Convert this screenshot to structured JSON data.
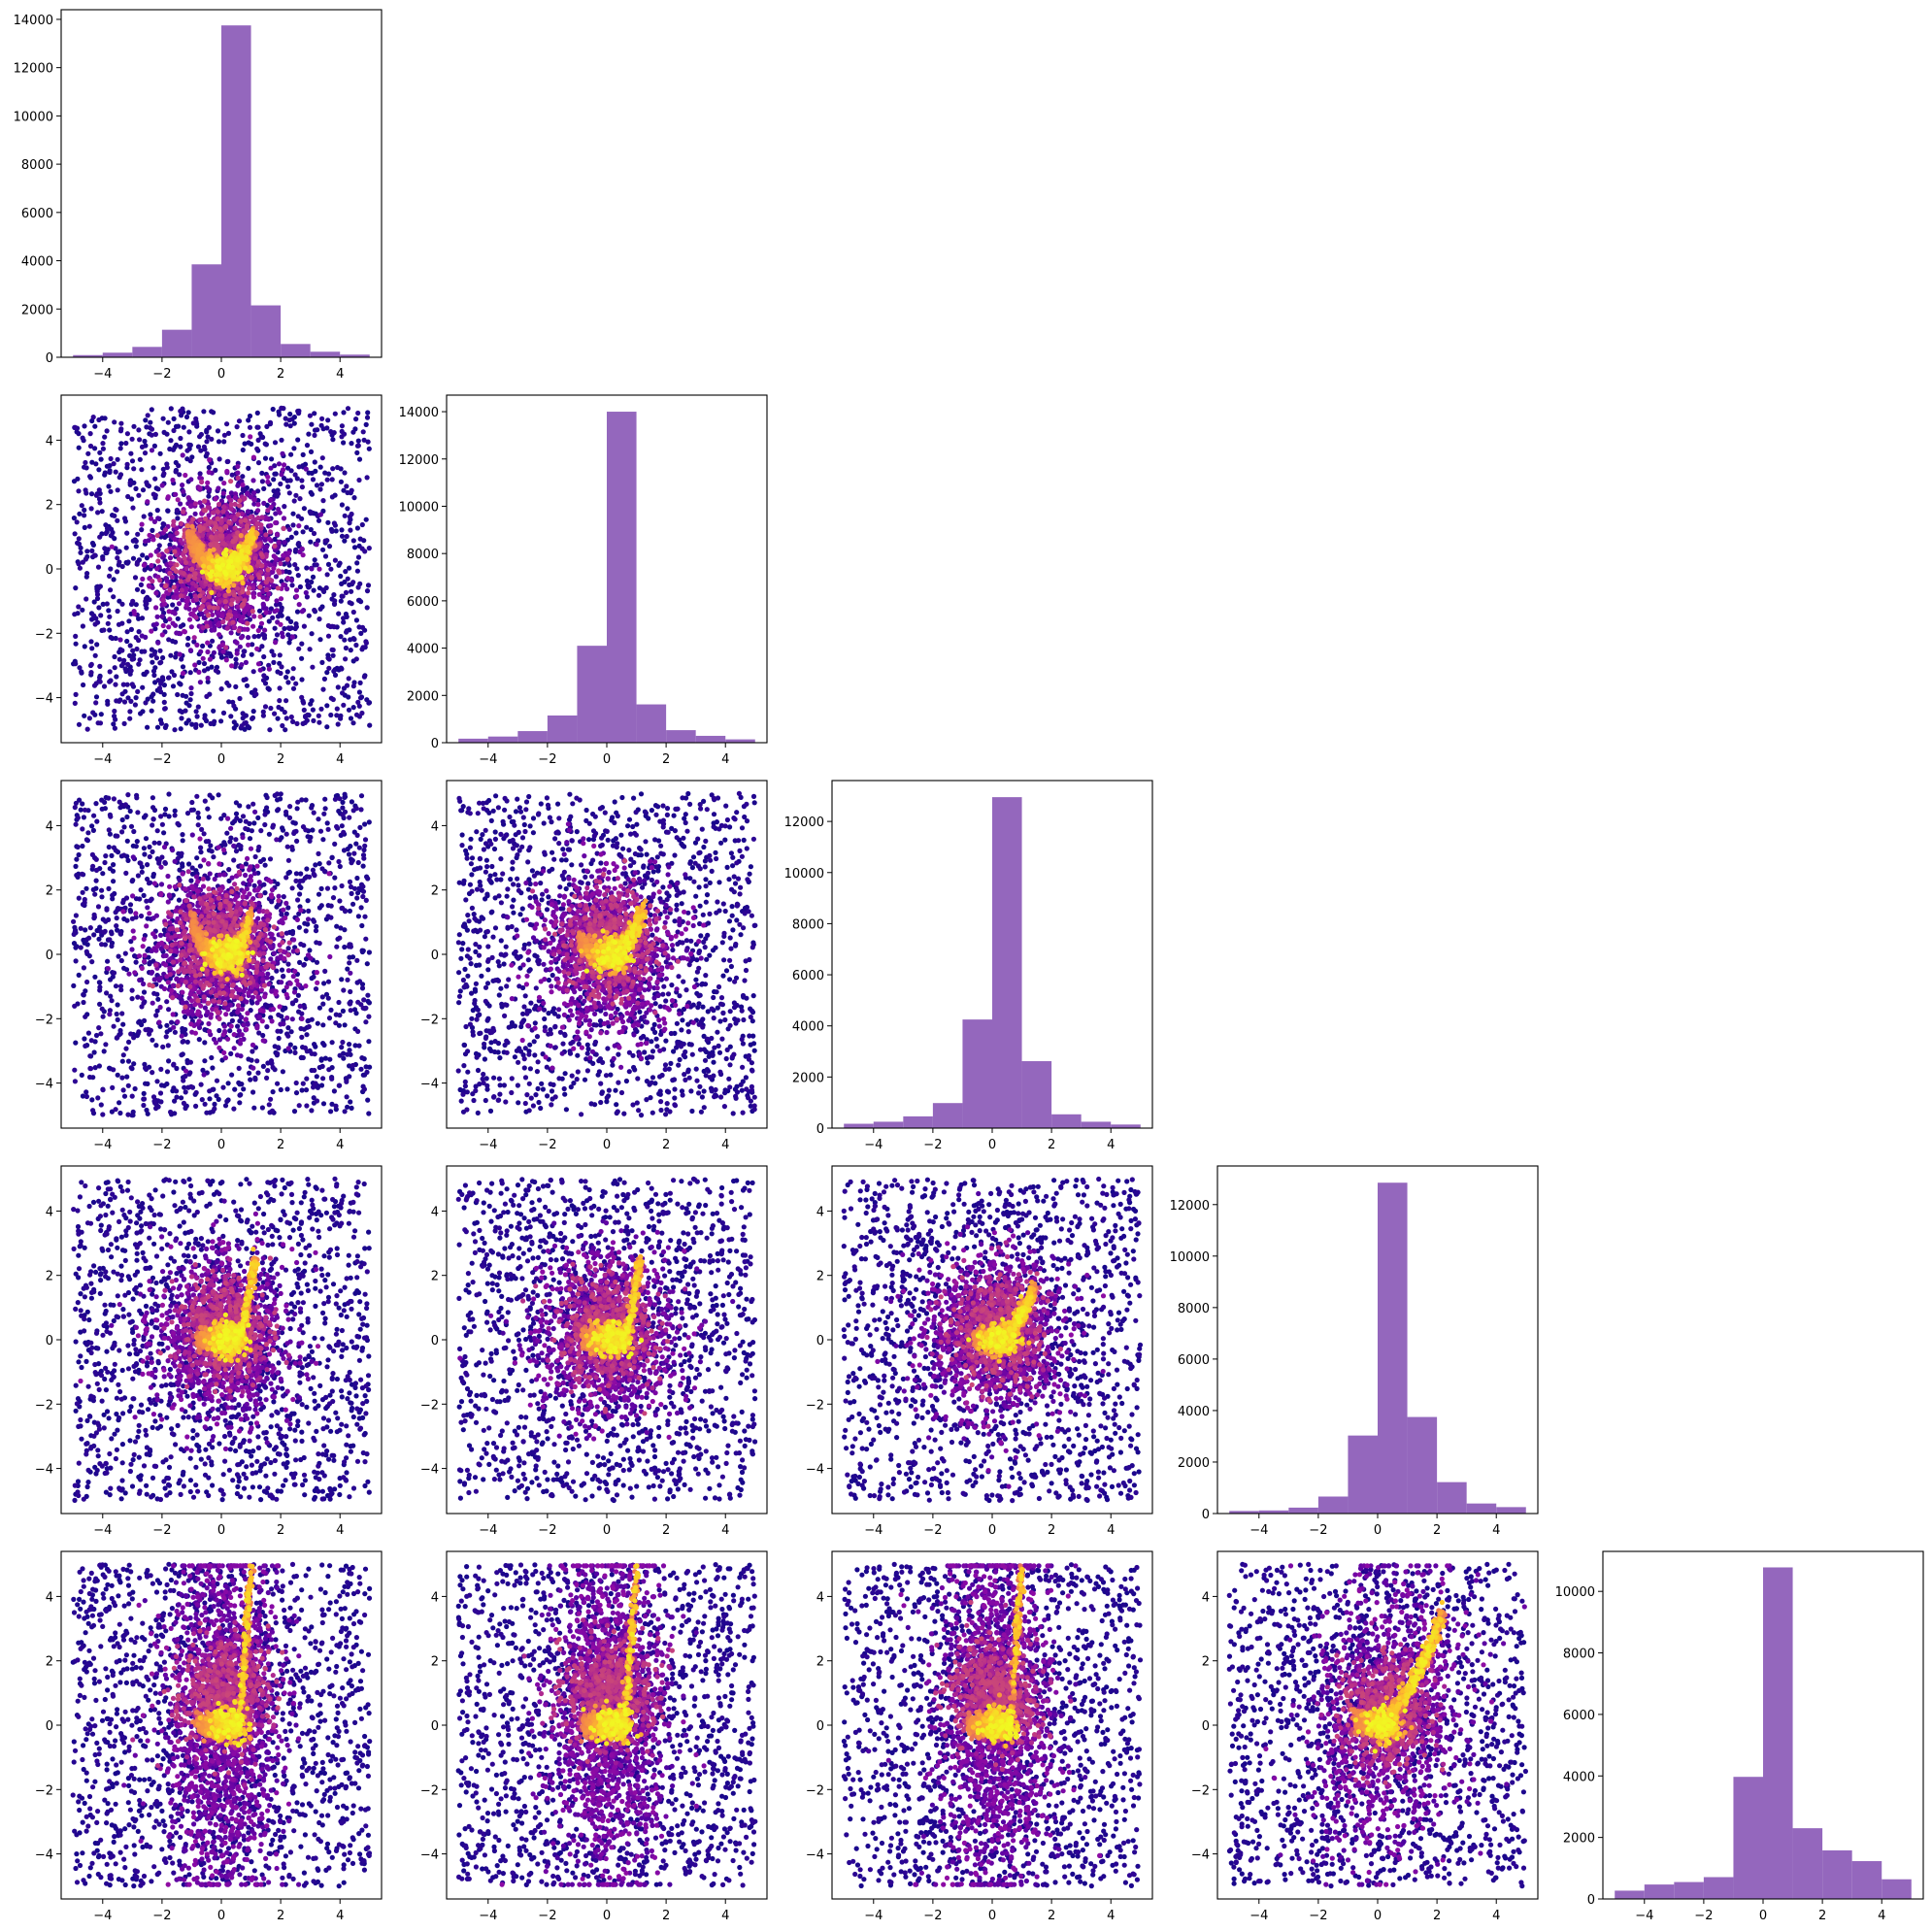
{
  "chart_data": {
    "type": "corner-plot",
    "n_variables": 5,
    "colors": {
      "histogram": "#9467bd",
      "scatter_colormap": "plasma",
      "axes": "#000000",
      "background": "#ffffff"
    },
    "axis_range": [
      -5,
      5
    ],
    "x_tick_labels": [
      "−4",
      "−2",
      "0",
      "2",
      "4"
    ],
    "y_tick_labels": [
      "−4",
      "−2",
      "0",
      "2",
      "4"
    ],
    "histograms": [
      {
        "variable": 1,
        "type": "bar",
        "bin_edges": [
          -5,
          -4,
          -3,
          -2,
          -1,
          0,
          1,
          2,
          3,
          4,
          5
        ],
        "counts": [
          90,
          190,
          430,
          1140,
          3850,
          13750,
          2150,
          550,
          230,
          110
        ],
        "ylim": [
          0,
          14400
        ],
        "y_tick_labels": [
          "0",
          "2000",
          "4000",
          "6000",
          "8000",
          "10000",
          "12000",
          "14000"
        ]
      },
      {
        "variable": 2,
        "type": "bar",
        "bin_edges": [
          -5,
          -4,
          -3,
          -2,
          -1,
          0,
          1,
          2,
          3,
          4,
          5
        ],
        "counts": [
          170,
          260,
          490,
          1150,
          4100,
          14000,
          1620,
          530,
          290,
          140
        ],
        "ylim": [
          0,
          14700
        ],
        "y_tick_labels": [
          "0",
          "2000",
          "4000",
          "6000",
          "8000",
          "10000",
          "12000",
          "14000"
        ]
      },
      {
        "variable": 3,
        "type": "bar",
        "bin_edges": [
          -5,
          -4,
          -3,
          -2,
          -1,
          0,
          1,
          2,
          3,
          4,
          5
        ],
        "counts": [
          170,
          250,
          460,
          980,
          4250,
          12950,
          2620,
          540,
          250,
          140
        ],
        "ylim": [
          0,
          13600
        ],
        "y_tick_labels": [
          "0",
          "2000",
          "4000",
          "6000",
          "8000",
          "10000",
          "12000"
        ]
      },
      {
        "variable": 4,
        "type": "bar",
        "bin_edges": [
          -5,
          -4,
          -3,
          -2,
          -1,
          0,
          1,
          2,
          3,
          4,
          5
        ],
        "counts": [
          100,
          120,
          230,
          660,
          3030,
          12850,
          3750,
          1220,
          390,
          250
        ],
        "ylim": [
          0,
          13500
        ],
        "y_tick_labels": [
          "0",
          "2000",
          "4000",
          "6000",
          "8000",
          "10000",
          "12000"
        ]
      },
      {
        "variable": 5,
        "type": "bar",
        "bin_edges": [
          -5,
          -4,
          -3,
          -2,
          -1,
          0,
          1,
          2,
          3,
          4,
          5
        ],
        "counts": [
          270,
          470,
          550,
          710,
          3970,
          10780,
          2300,
          1580,
          1230,
          640
        ],
        "ylim": [
          0,
          11300
        ],
        "y_tick_labels": [
          "0",
          "2000",
          "4000",
          "6000",
          "8000",
          "10000"
        ]
      }
    ],
    "scatter_panels": [
      {
        "row": 2,
        "col": 1,
        "type": "scatter",
        "shape": "v",
        "xlim": [
          -5,
          5
        ],
        "ylim": [
          -5,
          5
        ]
      },
      {
        "row": 3,
        "col": 1,
        "type": "scatter",
        "shape": "u",
        "xlim": [
          -5,
          5
        ],
        "ylim": [
          -5,
          5
        ]
      },
      {
        "row": 3,
        "col": 2,
        "type": "scatter",
        "shape": "check",
        "xlim": [
          -5,
          5
        ],
        "ylim": [
          -5,
          5
        ]
      },
      {
        "row": 4,
        "col": 1,
        "type": "scatter",
        "shape": "j",
        "xlim": [
          -5,
          5
        ],
        "ylim": [
          -5,
          5
        ]
      },
      {
        "row": 4,
        "col": 2,
        "type": "scatter",
        "shape": "j",
        "xlim": [
          -5,
          5
        ],
        "ylim": [
          -5,
          5
        ]
      },
      {
        "row": 4,
        "col": 3,
        "type": "scatter",
        "shape": "curve",
        "xlim": [
          -5,
          5
        ],
        "ylim": [
          -5,
          5
        ]
      },
      {
        "row": 5,
        "col": 1,
        "type": "scatter",
        "shape": "tall-j",
        "xlim": [
          -5,
          5
        ],
        "ylim": [
          -5,
          5
        ]
      },
      {
        "row": 5,
        "col": 2,
        "type": "scatter",
        "shape": "tall-j",
        "xlim": [
          -5,
          5
        ],
        "ylim": [
          -5,
          5
        ]
      },
      {
        "row": 5,
        "col": 3,
        "type": "scatter",
        "shape": "tall-j",
        "xlim": [
          -5,
          5
        ],
        "ylim": [
          -5,
          5
        ]
      },
      {
        "row": 5,
        "col": 4,
        "type": "scatter",
        "shape": "diagonal",
        "xlim": [
          -5,
          5
        ],
        "ylim": [
          -5,
          5
        ]
      }
    ]
  }
}
